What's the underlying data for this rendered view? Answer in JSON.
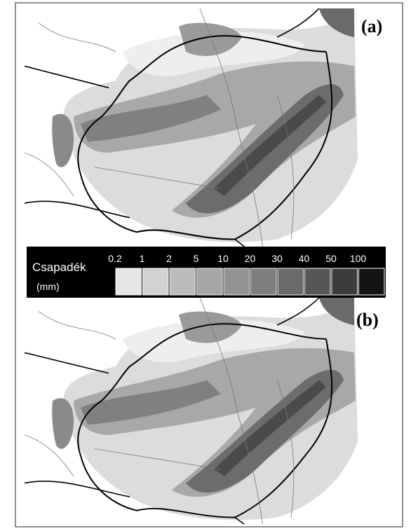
{
  "panels": [
    {
      "label": "(a)"
    },
    {
      "label": "(b)"
    }
  ],
  "legend": {
    "title": "Csapadék",
    "unit": "(mm)",
    "ticks": [
      0.2,
      1,
      2,
      5,
      10,
      20,
      30,
      40,
      50,
      100
    ],
    "colors": [
      "#e6e6e6",
      "#d2d2d2",
      "#bcbcbc",
      "#a6a6a6",
      "#929292",
      "#7e7e7e",
      "#6a6a6a",
      "#565656",
      "#3c3c3c",
      "#141414"
    ]
  }
}
